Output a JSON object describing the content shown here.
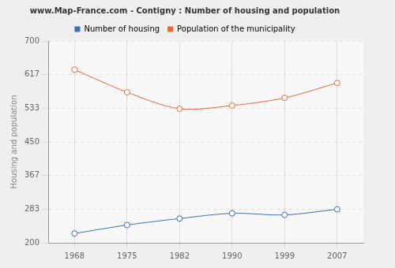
{
  "chart_data": {
    "type": "line",
    "title": "www.Map-France.com - Contigny : Number of housing and population",
    "y_label": "Housing and population",
    "categories": [
      "1968",
      "1975",
      "1982",
      "1990",
      "1999",
      "2007"
    ],
    "series": [
      {
        "name": "Number of housing",
        "color": "#3e6fb0",
        "values": [
          223,
          244,
          260,
          273,
          269,
          283
        ]
      },
      {
        "name": "Population of the municipality",
        "color": "#e5693b",
        "values": [
          629,
          573,
          532,
          540,
          559,
          596
        ]
      }
    ],
    "ylim": [
      200,
      700
    ],
    "yticks": [
      200,
      283,
      367,
      450,
      533,
      617,
      700
    ],
    "grid": true,
    "legend": "top",
    "marker": "circle"
  }
}
